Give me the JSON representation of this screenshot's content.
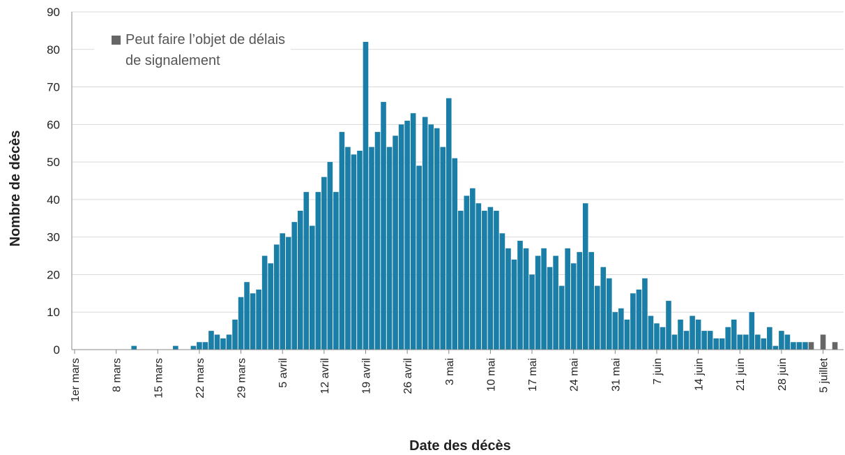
{
  "chart_data": {
    "type": "bar",
    "xlabel": "Date des décès",
    "ylabel": "Nombre de décès",
    "categories": [
      "1er mars",
      null,
      null,
      null,
      null,
      null,
      null,
      "8 mars",
      null,
      null,
      null,
      null,
      null,
      null,
      "15 mars",
      null,
      null,
      null,
      null,
      null,
      null,
      "22 mars",
      null,
      null,
      null,
      null,
      null,
      null,
      "29 mars",
      null,
      null,
      null,
      null,
      null,
      null,
      "5 avril",
      null,
      null,
      null,
      null,
      null,
      null,
      "12 avril",
      null,
      null,
      null,
      null,
      null,
      null,
      "19 avril",
      null,
      null,
      null,
      null,
      null,
      null,
      "26 avril",
      null,
      null,
      null,
      null,
      null,
      null,
      "3 mai",
      null,
      null,
      null,
      null,
      null,
      null,
      "10 mai",
      null,
      null,
      null,
      null,
      null,
      null,
      "17 mai",
      null,
      null,
      null,
      null,
      null,
      null,
      "24 mai",
      null,
      null,
      null,
      null,
      null,
      null,
      "31 mai",
      null,
      null,
      null,
      null,
      null,
      null,
      "7 juin",
      null,
      null,
      null,
      null,
      null,
      null,
      "14 juin",
      null,
      null,
      null,
      null,
      null,
      null,
      "21 juin",
      null,
      null,
      null,
      null,
      null,
      null,
      "28 juin",
      null,
      null,
      null,
      null,
      null,
      null,
      "5 juillet",
      null,
      null
    ],
    "series": [
      {
        "color": "#1a7ea6",
        "values": [
          0,
          0,
          0,
          0,
          0,
          0,
          0,
          0,
          0,
          0,
          1,
          0,
          0,
          0,
          0,
          0,
          0,
          1,
          0,
          0,
          1,
          2,
          2,
          5,
          4,
          3,
          4,
          8,
          14,
          18,
          15,
          16,
          25,
          23,
          28,
          31,
          30,
          34,
          37,
          42,
          33,
          42,
          46,
          50,
          42,
          58,
          54,
          52,
          53,
          82,
          54,
          58,
          66,
          54,
          57,
          60,
          61,
          63,
          49,
          62,
          60,
          59,
          54,
          67,
          51,
          37,
          41,
          43,
          39,
          37,
          38,
          37,
          31,
          27,
          24,
          29,
          27,
          20,
          25,
          27,
          22,
          25,
          17,
          27,
          23,
          26,
          39,
          26,
          17,
          22,
          19,
          10,
          11,
          8,
          15,
          16,
          19,
          9,
          7,
          6,
          13,
          4,
          8,
          5,
          9,
          8,
          5,
          5,
          3,
          3,
          6,
          8,
          4,
          4,
          10,
          4,
          3,
          6,
          1,
          5,
          4,
          2,
          2,
          2,
          null,
          0,
          null,
          0,
          null
        ]
      },
      {
        "name": "Peut faire l’objet de délais de signalement",
        "color": "#666666",
        "values": [
          null,
          null,
          null,
          null,
          null,
          null,
          null,
          null,
          null,
          null,
          null,
          null,
          null,
          null,
          null,
          null,
          null,
          null,
          null,
          null,
          null,
          null,
          null,
          null,
          null,
          null,
          null,
          null,
          null,
          null,
          null,
          null,
          null,
          null,
          null,
          null,
          null,
          null,
          null,
          null,
          null,
          null,
          null,
          null,
          null,
          null,
          null,
          null,
          null,
          null,
          null,
          null,
          null,
          null,
          null,
          null,
          null,
          null,
          null,
          null,
          null,
          null,
          null,
          null,
          null,
          null,
          null,
          null,
          null,
          null,
          null,
          null,
          null,
          null,
          null,
          null,
          null,
          null,
          null,
          null,
          null,
          null,
          null,
          null,
          null,
          null,
          null,
          null,
          null,
          null,
          null,
          null,
          null,
          null,
          null,
          null,
          null,
          null,
          null,
          null,
          null,
          null,
          null,
          null,
          null,
          null,
          null,
          null,
          null,
          null,
          null,
          null,
          null,
          null,
          null,
          null,
          null,
          null,
          null,
          null,
          null,
          null,
          null,
          null,
          2,
          null,
          4,
          null,
          2
        ]
      }
    ],
    "ylim": [
      0,
      90
    ],
    "yticks": [
      0,
      10,
      20,
      30,
      40,
      50,
      60,
      70,
      80,
      90
    ],
    "grid": true
  }
}
